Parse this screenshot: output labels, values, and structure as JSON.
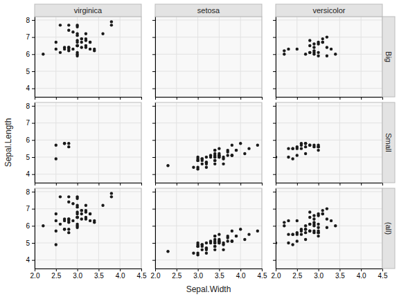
{
  "chart_data": [
    {
      "type": "scatter",
      "title": "virginica",
      "tick_labels": "y",
      "grid": true,
      "color": "#1a1a1a",
      "xlim": [
        2.0,
        4.5
      ],
      "ylim": [
        3.5,
        8.2
      ],
      "xticks": [
        {
          "value": 2.0,
          "label": "2.0"
        },
        2.5,
        {
          "value": 3.0,
          "label": "3.0"
        },
        3.5,
        {
          "value": 4.0,
          "label": "4.0"
        },
        4.5
      ],
      "yticks": [
        4,
        5,
        6,
        7,
        8
      ],
      "x": [
        3.3,
        3.0,
        2.9,
        3.0,
        3.0,
        2.9,
        2.5,
        3.6,
        3.2,
        2.7,
        3.0,
        3.2,
        3.0,
        3.8,
        2.6,
        2.2,
        3.2,
        2.8,
        2.7,
        3.3,
        3.2,
        2.8,
        3.0,
        2.8,
        3.0,
        2.8,
        3.8,
        2.8,
        2.8,
        2.6,
        3.0,
        3.4,
        3.1,
        3.0,
        3.1,
        3.1,
        3.1,
        3.2,
        3.3,
        3.0,
        2.5,
        3.0,
        3.4,
        3.0
      ],
      "values": [
        6.3,
        7.1,
        6.3,
        6.5,
        7.6,
        7.3,
        6.7,
        7.2,
        6.5,
        6.4,
        6.8,
        6.4,
        6.5,
        7.7,
        7.7,
        6.0,
        6.9,
        7.7,
        6.3,
        6.7,
        7.2,
        6.2,
        6.1,
        6.4,
        7.2,
        7.4,
        7.9,
        6.4,
        6.3,
        6.1,
        7.7,
        6.3,
        6.4,
        6.0,
        6.9,
        6.7,
        6.9,
        6.8,
        6.7,
        6.7,
        6.3,
        6.5,
        6.2,
        5.9
      ]
    },
    {
      "type": "scatter",
      "title": "setosa",
      "tick_labels": false,
      "grid": true,
      "color": "#1a1a1a",
      "xlim": [
        2.0,
        4.5
      ],
      "ylim": [
        3.5,
        8.2
      ],
      "xticks": [
        {
          "value": 2.0,
          "label": "2.0"
        },
        2.5,
        {
          "value": 3.0,
          "label": "3.0"
        },
        3.5,
        {
          "value": 4.0,
          "label": "4.0"
        },
        4.5
      ],
      "yticks": [
        4,
        5,
        6,
        7,
        8
      ],
      "x": [],
      "values": []
    },
    {
      "type": "scatter",
      "title": "versicolor",
      "subtitle": "Big",
      "tick_labels": false,
      "grid": true,
      "color": "#1a1a1a",
      "xlim": [
        2.0,
        4.5
      ],
      "ylim": [
        3.5,
        8.2
      ],
      "xticks": [
        {
          "value": 2.0,
          "label": "2.0"
        },
        2.5,
        {
          "value": 3.0,
          "label": "3.0"
        },
        3.5,
        {
          "value": 4.0,
          "label": "4.0"
        },
        4.5
      ],
      "yticks": [
        4,
        5,
        6,
        7,
        8
      ],
      "x": [
        3.2,
        3.2,
        3.1,
        2.8,
        3.3,
        2.9,
        3.0,
        2.2,
        2.9,
        3.1,
        2.2,
        3.2,
        2.8,
        2.5,
        2.8,
        2.9,
        3.0,
        2.8,
        3.0,
        2.9,
        2.7,
        3.4,
        3.1,
        2.3,
        3.0,
        2.9
      ],
      "values": [
        7.0,
        6.4,
        6.9,
        6.5,
        6.3,
        6.6,
        5.9,
        6.0,
        6.1,
        6.7,
        6.2,
        5.9,
        6.1,
        6.3,
        6.1,
        6.4,
        6.6,
        6.8,
        6.7,
        6.0,
        6.0,
        6.0,
        6.7,
        6.3,
        6.1,
        6.2
      ]
    },
    {
      "type": "scatter",
      "ylabel": "Sepal.Length",
      "tick_labels": "y",
      "grid": true,
      "color": "#1a1a1a",
      "xlim": [
        2.0,
        4.5
      ],
      "ylim": [
        3.5,
        8.2
      ],
      "xticks": [
        {
          "value": 2.0,
          "label": "2.0"
        },
        2.5,
        {
          "value": 3.0,
          "label": "3.0"
        },
        3.5,
        {
          "value": 4.0,
          "label": "4.0"
        },
        4.5
      ],
      "yticks": [
        4,
        5,
        6,
        7,
        8
      ],
      "x": [
        2.7,
        2.5,
        2.5,
        2.8,
        2.8,
        2.7
      ],
      "values": [
        5.8,
        4.9,
        5.7,
        5.8,
        5.6,
        5.8
      ]
    },
    {
      "type": "scatter",
      "tick_labels": false,
      "grid": true,
      "color": "#1a1a1a",
      "xlim": [
        2.0,
        4.5
      ],
      "ylim": [
        3.5,
        8.2
      ],
      "xticks": [
        {
          "value": 2.0,
          "label": "2.0"
        },
        2.5,
        {
          "value": 3.0,
          "label": "3.0"
        },
        3.5,
        {
          "value": 4.0,
          "label": "4.0"
        },
        4.5
      ],
      "yticks": [
        4,
        5,
        6,
        7,
        8
      ],
      "x": [
        3.5,
        3.0,
        3.2,
        3.1,
        3.6,
        3.9,
        3.4,
        3.4,
        2.9,
        3.1,
        3.7,
        3.4,
        3.0,
        3.0,
        4.0,
        4.4,
        3.9,
        3.5,
        3.8,
        3.8,
        3.4,
        3.7,
        3.6,
        3.3,
        3.4,
        3.0,
        3.4,
        3.5,
        3.4,
        3.2,
        3.1,
        3.4,
        4.1,
        4.2,
        3.1,
        3.2,
        3.5,
        3.6,
        3.0,
        3.4,
        3.5,
        2.3,
        3.2,
        3.5,
        3.8,
        3.0,
        3.8,
        3.2,
        3.7,
        3.3
      ],
      "values": [
        5.1,
        4.9,
        4.7,
        4.6,
        5.0,
        5.4,
        4.6,
        5.0,
        4.4,
        4.9,
        5.4,
        4.8,
        4.8,
        4.3,
        5.8,
        5.7,
        5.4,
        5.1,
        5.7,
        5.1,
        5.4,
        5.1,
        4.6,
        5.1,
        4.8,
        5.0,
        5.0,
        5.2,
        5.2,
        4.7,
        4.8,
        5.4,
        5.2,
        5.5,
        4.9,
        5.0,
        5.5,
        4.9,
        4.4,
        5.1,
        5.0,
        4.5,
        4.4,
        5.0,
        5.1,
        4.8,
        5.1,
        4.6,
        5.3,
        5.0
      ]
    },
    {
      "type": "scatter",
      "subtitle": "Small",
      "tick_labels": false,
      "grid": true,
      "color": "#1a1a1a",
      "xlim": [
        2.0,
        4.5
      ],
      "ylim": [
        3.5,
        8.2
      ],
      "xticks": [
        {
          "value": 2.0,
          "label": "2.0"
        },
        2.5,
        {
          "value": 3.0,
          "label": "3.0"
        },
        3.5,
        {
          "value": 4.0,
          "label": "4.0"
        },
        4.5
      ],
      "yticks": [
        4,
        5,
        6,
        7,
        8
      ],
      "x": [
        2.3,
        2.8,
        2.4,
        2.7,
        2.0,
        2.9,
        3.0,
        2.7,
        2.5,
        2.6,
        2.4,
        2.4,
        2.7,
        3.0,
        3.0,
        2.5,
        2.6,
        2.6,
        2.3,
        2.7,
        3.0,
        2.9,
        2.5,
        2.8
      ],
      "values": [
        5.5,
        5.7,
        4.9,
        5.2,
        5.0,
        5.6,
        5.6,
        5.8,
        5.6,
        5.7,
        5.5,
        5.5,
        5.8,
        5.4,
        5.6,
        5.5,
        5.5,
        5.8,
        5.0,
        5.6,
        5.7,
        5.7,
        5.1,
        5.7
      ]
    },
    {
      "type": "scatter",
      "grid": true,
      "color": "#1a1a1a",
      "xlim": [
        2.0,
        4.5
      ],
      "ylim": [
        3.5,
        8.2
      ],
      "xticks": [
        {
          "value": 2.0,
          "label": "2.0"
        },
        2.5,
        {
          "value": 3.0,
          "label": "3.0"
        },
        3.5,
        {
          "value": 4.0,
          "label": "4.0"
        },
        4.5
      ],
      "yticks": [
        4,
        5,
        6,
        7,
        8
      ],
      "x": [
        3.3,
        2.7,
        3.0,
        2.9,
        3.0,
        3.0,
        2.5,
        2.9,
        2.5,
        3.6,
        3.2,
        2.7,
        3.0,
        2.5,
        2.8,
        3.2,
        3.0,
        3.8,
        2.6,
        2.2,
        3.2,
        2.8,
        2.8,
        2.7,
        3.3,
        3.2,
        2.8,
        3.0,
        2.8,
        3.0,
        2.8,
        3.8,
        2.8,
        2.8,
        2.6,
        3.0,
        3.4,
        3.1,
        3.0,
        3.1,
        3.1,
        3.1,
        2.7,
        3.2,
        3.3,
        3.0,
        2.5,
        3.0,
        3.4,
        3.0
      ],
      "values": [
        6.3,
        5.8,
        7.1,
        6.3,
        6.5,
        7.6,
        4.9,
        7.3,
        6.7,
        7.2,
        6.5,
        6.4,
        6.8,
        5.7,
        5.8,
        6.4,
        6.5,
        7.7,
        7.7,
        6.0,
        6.9,
        5.6,
        7.7,
        6.3,
        6.7,
        7.2,
        6.2,
        6.1,
        6.4,
        7.2,
        7.4,
        7.9,
        6.4,
        6.3,
        6.1,
        7.7,
        6.3,
        6.4,
        6.0,
        6.9,
        6.7,
        6.9,
        5.8,
        6.8,
        6.7,
        6.7,
        6.3,
        6.5,
        6.2,
        5.9
      ]
    },
    {
      "type": "scatter",
      "xlabel": "Sepal.Width",
      "tick_labels": "x",
      "grid": true,
      "color": "#1a1a1a",
      "xlim": [
        2.0,
        4.5
      ],
      "ylim": [
        3.5,
        8.2
      ],
      "xticks": [
        {
          "value": 2.0,
          "label": "2.0"
        },
        2.5,
        {
          "value": 3.0,
          "label": "3.0"
        },
        3.5,
        {
          "value": 4.0,
          "label": "4.0"
        },
        4.5
      ],
      "yticks": [
        4,
        5,
        6,
        7,
        8
      ],
      "x": [
        3.5,
        3.0,
        3.2,
        3.1,
        3.6,
        3.9,
        3.4,
        3.4,
        2.9,
        3.1,
        3.7,
        3.4,
        3.0,
        3.0,
        4.0,
        4.4,
        3.9,
        3.5,
        3.8,
        3.8,
        3.4,
        3.7,
        3.6,
        3.3,
        3.4,
        3.0,
        3.4,
        3.5,
        3.4,
        3.2,
        3.1,
        3.4,
        4.1,
        4.2,
        3.1,
        3.2,
        3.5,
        3.6,
        3.0,
        3.4,
        3.5,
        2.3,
        3.2,
        3.5,
        3.8,
        3.0,
        3.8,
        3.2,
        3.7,
        3.3
      ],
      "values": [
        5.1,
        4.9,
        4.7,
        4.6,
        5.0,
        5.4,
        4.6,
        5.0,
        4.4,
        4.9,
        5.4,
        4.8,
        4.8,
        4.3,
        5.8,
        5.7,
        5.4,
        5.1,
        5.7,
        5.1,
        5.4,
        5.1,
        4.6,
        5.1,
        4.8,
        5.0,
        5.0,
        5.2,
        5.2,
        4.7,
        4.8,
        5.4,
        5.2,
        5.5,
        4.9,
        5.0,
        5.5,
        4.9,
        4.4,
        5.1,
        5.0,
        4.5,
        4.4,
        5.0,
        5.1,
        4.8,
        5.1,
        4.6,
        5.3,
        5.0
      ]
    },
    {
      "type": "scatter",
      "subtitle": "(all)",
      "tick_labels": "x",
      "grid": true,
      "color": "#1a1a1a",
      "xlim": [
        2.0,
        4.5
      ],
      "ylim": [
        3.5,
        8.2
      ],
      "xticks": [
        {
          "value": 2.0,
          "label": "2.0"
        },
        2.5,
        {
          "value": 3.0,
          "label": "3.0"
        },
        3.5,
        {
          "value": 4.0,
          "label": "4.0"
        },
        4.5
      ],
      "yticks": [
        4,
        5,
        6,
        7,
        8
      ],
      "x": [
        3.2,
        3.2,
        3.1,
        2.3,
        2.8,
        2.8,
        3.3,
        2.4,
        2.9,
        2.7,
        2.0,
        3.0,
        2.2,
        2.9,
        2.9,
        3.1,
        3.0,
        2.7,
        2.2,
        2.5,
        3.2,
        2.8,
        2.5,
        2.8,
        2.9,
        3.0,
        2.8,
        3.0,
        2.9,
        2.6,
        2.4,
        2.4,
        2.7,
        2.7,
        3.0,
        3.4,
        3.1,
        2.3,
        3.0,
        2.5,
        2.6,
        3.0,
        2.6,
        2.3,
        2.7,
        3.0,
        2.9,
        2.9,
        2.5,
        2.8
      ],
      "values": [
        7.0,
        6.4,
        6.9,
        5.5,
        6.5,
        5.7,
        6.3,
        4.9,
        6.6,
        5.2,
        5.0,
        5.9,
        6.0,
        6.1,
        5.6,
        6.7,
        5.6,
        5.8,
        6.2,
        5.6,
        5.9,
        6.1,
        6.3,
        6.1,
        6.4,
        6.6,
        6.8,
        6.7,
        6.0,
        5.7,
        5.5,
        5.5,
        5.8,
        6.0,
        5.4,
        6.0,
        6.7,
        6.3,
        5.6,
        5.5,
        5.5,
        6.1,
        5.8,
        5.0,
        5.6,
        5.7,
        5.7,
        6.2,
        5.1,
        5.7
      ]
    }
  ]
}
